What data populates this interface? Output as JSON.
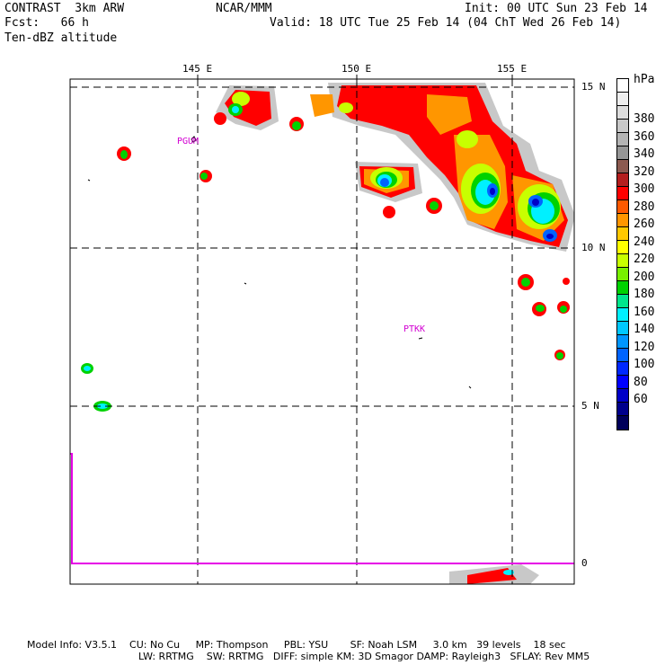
{
  "header": {
    "left1": "CONTRAST  3km ARW",
    "center1": "NCAR/MMM",
    "right1": "Init: 00 UTC Sun 23 Feb 14",
    "left2": "Fcst:   66 h",
    "right2": "Valid: 18 UTC Tue 25 Feb 14 (04 ChT Wed 26 Feb 14)",
    "left3": "Ten-dBZ altitude"
  },
  "map": {
    "lon_labels": [
      "145 E",
      "150 E",
      "155 E"
    ],
    "lat_labels": [
      "15 N",
      "10 N",
      "5 N",
      "0"
    ],
    "stations": [
      "PGUM",
      "PTKK"
    ]
  },
  "colorbar": {
    "unit": "hPa",
    "labels": [
      "380",
      "360",
      "340",
      "320",
      "300",
      "280",
      "260",
      "240",
      "220",
      "200",
      "180",
      "160",
      "140",
      "120",
      "100",
      "80",
      "60"
    ],
    "colors": [
      "#ffffff",
      "#eeeeee",
      "#dddddd",
      "#c8c8c8",
      "#b4b4b4",
      "#969696",
      "#8c5a50",
      "#b41e1e",
      "#ff0000",
      "#ff5a00",
      "#ff9600",
      "#ffc800",
      "#ffff00",
      "#c8ff00",
      "#78f000",
      "#00d200",
      "#00e68c",
      "#00f0ff",
      "#00c8ff",
      "#0096ff",
      "#0064ff",
      "#0028ff",
      "#0000ff",
      "#0000c8",
      "#00008c",
      "#00005a"
    ]
  },
  "footer": {
    "line1": "Model Info: V3.5.1    CU: No Cu     MP: Thompson     PBL: YSU       SF: Noah LSM     3.0 km   39 levels    18 sec",
    "line2": "LW: RRTMG    SW: RRTMG   DIFF: simple KM: 3D Smagor DAMP: Rayleigh3   SFLAY: Rev MM5"
  }
}
